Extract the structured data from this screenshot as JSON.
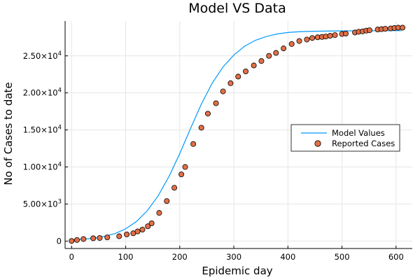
{
  "chart_data": {
    "type": "line+scatter",
    "title": "Model VS Data",
    "xlabel": "Epidemic day",
    "ylabel": "No of Cases to date",
    "xlim": [
      -12,
      630
    ],
    "ylim": [
      -1000,
      29700
    ],
    "x_ticks": [
      0,
      100,
      200,
      300,
      400,
      500,
      600
    ],
    "x_tick_labels": [
      "0",
      "100",
      "200",
      "300",
      "400",
      "500",
      "600"
    ],
    "y_ticks": [
      0,
      5000,
      10000,
      15000,
      20000,
      25000
    ],
    "y_tick_labels": [
      {
        "mantissa": "0",
        "exponent": ""
      },
      {
        "mantissa": "5.00×10",
        "exponent": "3"
      },
      {
        "mantissa": "1.00×10",
        "exponent": "4"
      },
      {
        "mantissa": "1.50×10",
        "exponent": "4"
      },
      {
        "mantissa": "2.00×10",
        "exponent": "4"
      },
      {
        "mantissa": "2.50×10",
        "exponent": "4"
      }
    ],
    "grid": true,
    "legend_position": "right",
    "series": [
      {
        "name": "Model Values",
        "kind": "line",
        "color": "#009af9",
        "x": [
          0,
          50,
          80,
          100,
          120,
          140,
          160,
          180,
          200,
          220,
          240,
          260,
          280,
          300,
          320,
          340,
          360,
          380,
          400,
          420,
          450,
          500,
          550,
          600,
          610
        ],
        "y": [
          100,
          450,
          1000,
          1650,
          2650,
          4100,
          6100,
          8700,
          11800,
          15200,
          18500,
          21300,
          23500,
          25100,
          26300,
          27100,
          27600,
          27950,
          28150,
          28250,
          28320,
          28370,
          28390,
          28400,
          28400
        ]
      },
      {
        "name": "Reported Cases",
        "kind": "scatter",
        "color": "#e26f46",
        "x": [
          0,
          10,
          22,
          40,
          52,
          66,
          88,
          102,
          114,
          122,
          131,
          141,
          148,
          162,
          176,
          190,
          203,
          210,
          225,
          240,
          252,
          267,
          280,
          294,
          308,
          322,
          337,
          351,
          365,
          378,
          392,
          407,
          421,
          435,
          445,
          455,
          463,
          470,
          478,
          487,
          500,
          507,
          524,
          531,
          538,
          545,
          551,
          566,
          573,
          580,
          590,
          597,
          604,
          612
        ],
        "y": [
          20,
          150,
          280,
          380,
          420,
          500,
          650,
          900,
          1050,
          1300,
          1550,
          2000,
          2400,
          3800,
          5400,
          7200,
          9000,
          10000,
          13100,
          15300,
          17200,
          18600,
          20200,
          21300,
          22200,
          22900,
          23700,
          24300,
          25000,
          25400,
          26000,
          26600,
          27000,
          27200,
          27400,
          27500,
          27550,
          27600,
          27700,
          27800,
          27950,
          28000,
          28150,
          28250,
          28300,
          28400,
          28450,
          28550,
          28600,
          28650,
          28700,
          28750,
          28800,
          28800
        ]
      }
    ]
  }
}
